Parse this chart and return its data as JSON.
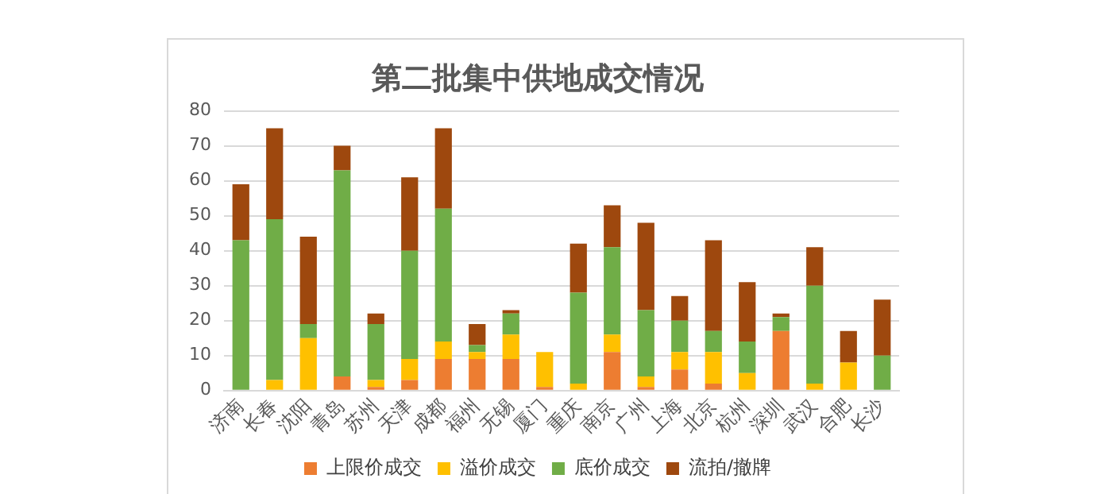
{
  "chart_data": {
    "type": "bar",
    "title": "第二批集中供地成交情况",
    "stacked": true,
    "grid": "y",
    "legend": "bottom",
    "categories": [
      "济南",
      "长春",
      "沈阳",
      "青岛",
      "苏州",
      "天津",
      "成都",
      "福州",
      "无锡",
      "厦门",
      "重庆",
      "南京",
      "广州",
      "上海",
      "北京",
      "杭州",
      "深圳",
      "武汉",
      "合肥",
      "长沙"
    ],
    "ylim": [
      0,
      80
    ],
    "yticks": [
      0,
      10,
      20,
      30,
      40,
      50,
      60,
      70,
      80
    ],
    "series": [
      {
        "name": "上限价成交",
        "color": "#ed7d31",
        "values": [
          0,
          0,
          0,
          4,
          1,
          3,
          9,
          9,
          9,
          1,
          0,
          11,
          1,
          6,
          2,
          0,
          17,
          0,
          0,
          0
        ]
      },
      {
        "name": "溢价成交",
        "color": "#ffc000",
        "values": [
          0,
          3,
          15,
          0,
          2,
          6,
          5,
          2,
          7,
          10,
          2,
          5,
          3,
          5,
          9,
          5,
          0,
          2,
          8,
          0
        ]
      },
      {
        "name": "底价成交",
        "color": "#70ad47",
        "values": [
          43,
          46,
          4,
          59,
          16,
          31,
          38,
          2,
          6,
          0,
          26,
          25,
          19,
          9,
          6,
          9,
          4,
          28,
          0,
          10
        ]
      },
      {
        "name": "流拍/撤牌",
        "color": "#9e480e",
        "values": [
          16,
          26,
          25,
          7,
          3,
          21,
          23,
          6,
          1,
          0,
          14,
          12,
          25,
          7,
          26,
          17,
          1,
          11,
          9,
          16
        ]
      }
    ]
  }
}
